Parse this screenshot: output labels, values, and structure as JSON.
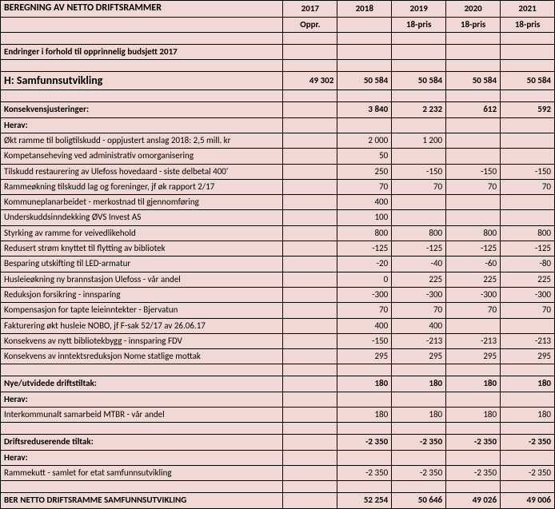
{
  "header": {
    "title": "BEREGNING AV NETTO DRIFTSRAMMER",
    "years": [
      "2017",
      "2018",
      "2019",
      "2020",
      "2021"
    ],
    "subs": [
      "Oppr.",
      "",
      "18-pris",
      "18-pris",
      "18-pris"
    ]
  },
  "changesRow": {
    "label": "Endringer i forhold til opprinnelig budsjett 2017"
  },
  "sectionH": {
    "label": "H: Samfunnsutvikling",
    "vals": [
      "49 302",
      "50 584",
      "50 584",
      "50 584",
      "50 584"
    ]
  },
  "konsekvens": {
    "label": "Konsekvensjusteringer:",
    "vals": [
      "",
      "3 840",
      "2 232",
      "612",
      "592"
    ]
  },
  "herav1": {
    "label": "Herav:"
  },
  "items": [
    {
      "label": "Økt ramme til boligtilskudd - oppjustert anslag 2018: 2,5 mill. kr",
      "vals": [
        "",
        "2 000",
        "1 200",
        "",
        ""
      ]
    },
    {
      "label": "Kompetanseheving ved administrativ omorganisering",
      "vals": [
        "",
        "50",
        "",
        "",
        ""
      ]
    },
    {
      "label": "Tilskudd restaurering av Ulefoss hovedaard - siste delbetal 400'",
      "vals": [
        "",
        "250",
        "-150",
        "-150",
        "-150"
      ]
    },
    {
      "label": "Rammeøkning tilskudd lag og foreninger, jf øk rapport 2/17",
      "vals": [
        "",
        "70",
        "70",
        "70",
        "70"
      ]
    },
    {
      "label": "Kommuneplanarbeidet - merkostnad til gjennomføring",
      "vals": [
        "",
        "400",
        "",
        "",
        ""
      ]
    },
    {
      "label": "Underskuddsinndekking ØVS Invest AS",
      "vals": [
        "",
        "100",
        "",
        "",
        ""
      ]
    },
    {
      "label": "Styrking av ramme for veivedlikehold",
      "vals": [
        "",
        "800",
        "800",
        "800",
        "800"
      ]
    },
    {
      "label": "Redusert strøm knyttet til flytting av bibliotek",
      "vals": [
        "",
        "-125",
        "-125",
        "-125",
        "-125"
      ]
    },
    {
      "label": "Besparing utskifting til LED-armatur",
      "vals": [
        "",
        "-20",
        "-40",
        "-60",
        "-80"
      ]
    },
    {
      "label": "Husleieøkning ny brannstasjon Ulefoss - vår andel",
      "vals": [
        "",
        "0",
        "225",
        "225",
        "225"
      ]
    },
    {
      "label": "Reduksjon forsikring - innsparing",
      "vals": [
        "",
        "-300",
        "-300",
        "-300",
        "-300"
      ]
    },
    {
      "label": "Kompensasjon for tapte leieinntekter - Bjervatun",
      "vals": [
        "",
        "70",
        "70",
        "70",
        "70"
      ]
    },
    {
      "label": "Fakturering økt husleie NOBO, jf F-sak 52/17 av 26.06.17",
      "vals": [
        "",
        "400",
        "400",
        "",
        ""
      ]
    },
    {
      "label": "Konsekvens av nytt bibliotekbygg - innsparing FDV",
      "vals": [
        "",
        "-150",
        "-213",
        "-213",
        "-213"
      ]
    },
    {
      "label": "Konsekvens av inntektsreduksjon Nome statlige mottak",
      "vals": [
        "",
        "295",
        "295",
        "295",
        "295"
      ]
    }
  ],
  "nye": {
    "label": "Nye/utvidede driftstiltak:",
    "vals": [
      "",
      "180",
      "180",
      "180",
      "180"
    ]
  },
  "herav2": {
    "label": "Herav:"
  },
  "nyeItems": [
    {
      "label": "Interkommunalt samarbeid MTBR - vår andel",
      "vals": [
        "",
        "180",
        "180",
        "180",
        "180"
      ]
    }
  ],
  "driftsred": {
    "label": "Driftsreduserende tiltak:",
    "vals": [
      "",
      "-2 350",
      "-2 350",
      "-2 350",
      "-2 350"
    ]
  },
  "herav3": {
    "label": "Herav:"
  },
  "driftsredItems": [
    {
      "label": "Rammekutt - samlet for etat samfunnsutvikling",
      "vals": [
        "",
        "-2 350",
        "-2 350",
        "-2 350",
        "-2 350"
      ]
    }
  ],
  "total": {
    "label": "BER NETTO DRIFTSRAMME SAMFUNNSUTVIKLING",
    "vals": [
      "",
      "52 254",
      "50 646",
      "49 026",
      "49 006"
    ]
  },
  "colors": {
    "background": "#f0d8d4",
    "border": "#000000",
    "text": "#000000"
  }
}
